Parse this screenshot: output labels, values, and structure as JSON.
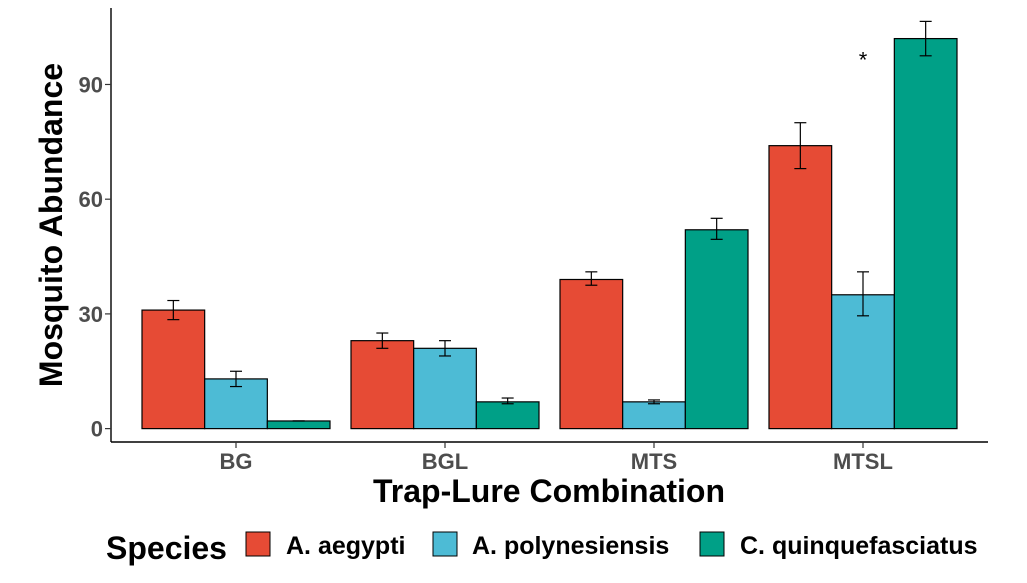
{
  "chart_data": {
    "type": "bar",
    "title": "",
    "xlabel": "Trap-Lure Combination",
    "ylabel": "Mosquito Abundance",
    "categories": [
      "BG",
      "BGL",
      "MTS",
      "MTSL"
    ],
    "ylim": [
      -3.5,
      110
    ],
    "yticks": [
      0,
      30,
      60,
      90
    ],
    "grid": false,
    "legend": {
      "title": "Species",
      "placement": "bottom"
    },
    "series": [
      {
        "name": "A. aegypti",
        "color": "#E64B35",
        "values": [
          31,
          23,
          39,
          74
        ],
        "err_low": [
          28.5,
          21,
          37.5,
          68
        ],
        "err_high": [
          33.5,
          25,
          41,
          80
        ]
      },
      {
        "name": "A. polynesiensis",
        "color": "#4DBBD5",
        "values": [
          13,
          21,
          7,
          35
        ],
        "err_low": [
          11,
          19,
          6.5,
          29.5
        ],
        "err_high": [
          15,
          23,
          7.5,
          41
        ]
      },
      {
        "name": "C. quinquefasciatus",
        "color": "#00A087",
        "values": [
          2,
          7,
          52,
          102
        ],
        "err_low": [
          2,
          6.5,
          49.5,
          97.5
        ],
        "err_high": [
          2,
          8,
          55,
          106.5
        ]
      }
    ],
    "annotations": [
      {
        "text": "*",
        "category": "MTSL",
        "series": 1,
        "y": 97
      }
    ]
  }
}
